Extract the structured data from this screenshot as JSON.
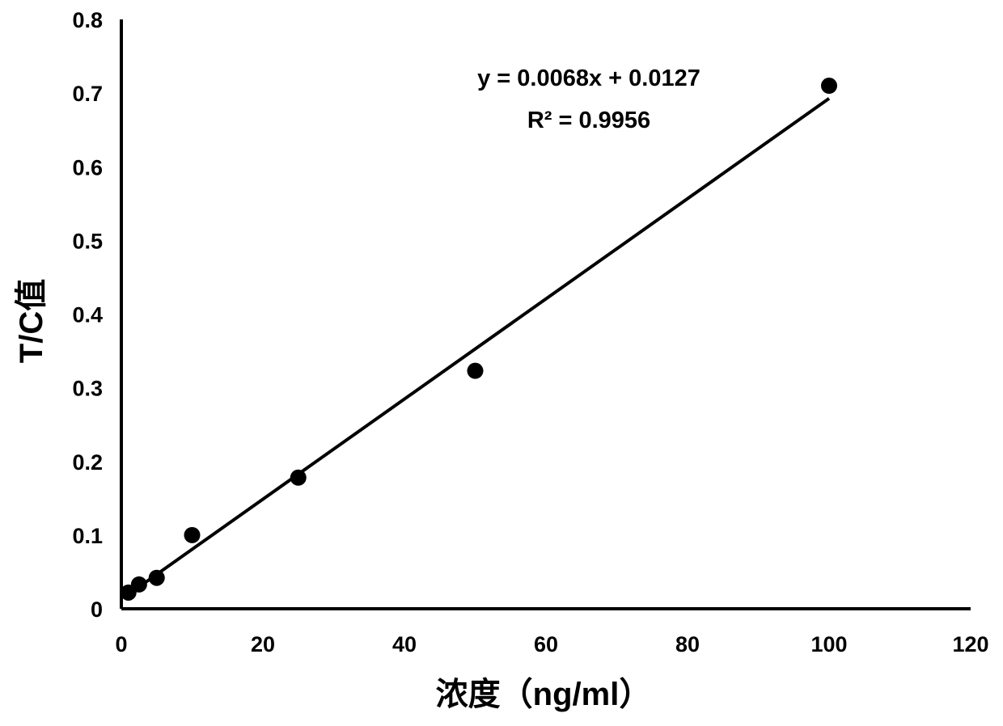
{
  "chart_data": {
    "type": "scatter",
    "xlabel": "浓度（ng/ml）",
    "ylabel": "T/C值",
    "xlim": [
      0,
      120
    ],
    "ylim": [
      0,
      0.8
    ],
    "x_ticks": [
      0,
      20,
      40,
      60,
      80,
      100,
      120
    ],
    "y_ticks": [
      0,
      0.1,
      0.2,
      0.3,
      0.4,
      0.5,
      0.6,
      0.7,
      0.8
    ],
    "x_tick_labels": [
      "0",
      "20",
      "40",
      "60",
      "80",
      "100",
      "120"
    ],
    "y_tick_labels": [
      "0",
      "0.1",
      "0.2",
      "0.3",
      "0.4",
      "0.5",
      "0.6",
      "0.7",
      "0.8"
    ],
    "grid": false,
    "series": [
      {
        "points": [
          {
            "x": 1,
            "y": 0.022
          },
          {
            "x": 2.5,
            "y": 0.033
          },
          {
            "x": 5,
            "y": 0.042
          },
          {
            "x": 10,
            "y": 0.1
          },
          {
            "x": 25,
            "y": 0.178
          },
          {
            "x": 50,
            "y": 0.323
          },
          {
            "x": 100,
            "y": 0.71
          }
        ]
      }
    ],
    "trendline": {
      "type": "linear",
      "slope": 0.0068,
      "intercept": 0.0127,
      "x_range": [
        1,
        100
      ]
    },
    "annotations": {
      "equation": "y = 0.0068x + 0.0127",
      "r_squared": "R² = 0.9956"
    },
    "colors": {
      "marker": "#000000",
      "line": "#000000",
      "axis": "#000000"
    }
  }
}
